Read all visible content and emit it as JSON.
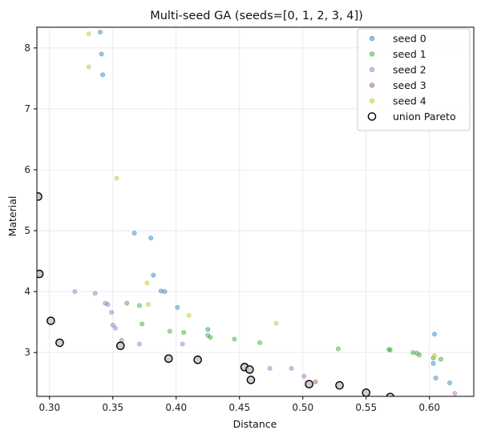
{
  "chart_data": {
    "type": "scatter",
    "title": "Multi-seed GA (seeds=[0, 1, 2, 3, 4])",
    "xlabel": "Distance",
    "ylabel": "Material",
    "xlim": [
      0.29,
      0.635
    ],
    "ylim": [
      2.28,
      8.34
    ],
    "xticks": [
      0.3,
      0.35,
      0.4,
      0.45,
      0.5,
      0.55,
      0.6
    ],
    "xtick_labels": [
      "0.30",
      "0.35",
      "0.40",
      "0.45",
      "0.50",
      "0.55",
      "0.60"
    ],
    "yticks": [
      3,
      4,
      5,
      6,
      7,
      8
    ],
    "ytick_labels": [
      "3",
      "4",
      "5",
      "6",
      "7",
      "8"
    ],
    "grid": true,
    "legend_position": "top-right",
    "series": [
      {
        "name": "seed 0",
        "color": "#1f77b4",
        "points": [
          [
            0.34,
            8.26
          ],
          [
            0.341,
            7.9
          ],
          [
            0.342,
            7.56
          ],
          [
            0.367,
            4.96
          ],
          [
            0.38,
            4.88
          ],
          [
            0.382,
            4.27
          ],
          [
            0.388,
            4.01
          ],
          [
            0.391,
            4.0
          ],
          [
            0.401,
            3.74
          ],
          [
            0.425,
            3.38
          ],
          [
            0.604,
            3.3
          ],
          [
            0.603,
            2.82
          ],
          [
            0.605,
            2.58
          ],
          [
            0.616,
            2.5
          ]
        ]
      },
      {
        "name": "seed 1",
        "color": "#2ca02c",
        "points": [
          [
            0.293,
            4.29
          ],
          [
            0.361,
            3.81
          ],
          [
            0.371,
            3.77
          ],
          [
            0.373,
            3.47
          ],
          [
            0.395,
            3.35
          ],
          [
            0.406,
            3.33
          ],
          [
            0.425,
            3.28
          ],
          [
            0.427,
            3.25
          ],
          [
            0.446,
            3.22
          ],
          [
            0.466,
            3.16
          ],
          [
            0.528,
            3.06
          ],
          [
            0.568,
            3.05
          ],
          [
            0.569,
            3.04
          ],
          [
            0.587,
            3.0
          ],
          [
            0.59,
            2.99
          ],
          [
            0.592,
            2.96
          ],
          [
            0.603,
            2.91
          ],
          [
            0.609,
            2.89
          ]
        ]
      },
      {
        "name": "seed 2",
        "color": "#9467bd",
        "points": [
          [
            0.32,
            4.0
          ],
          [
            0.336,
            3.97
          ],
          [
            0.344,
            3.81
          ],
          [
            0.346,
            3.79
          ],
          [
            0.349,
            3.66
          ],
          [
            0.35,
            3.45
          ],
          [
            0.352,
            3.4
          ],
          [
            0.357,
            3.2
          ],
          [
            0.371,
            3.14
          ],
          [
            0.405,
            3.14
          ],
          [
            0.474,
            2.74
          ],
          [
            0.491,
            2.74
          ],
          [
            0.501,
            2.61
          ],
          [
            0.62,
            2.33
          ]
        ]
      },
      {
        "name": "seed 3",
        "color": "#8c564b",
        "points": [
          [
            0.51,
            2.52
          ]
        ]
      },
      {
        "name": "seed 4",
        "color": "#bcbd22",
        "points": [
          [
            0.331,
            8.23
          ],
          [
            0.331,
            7.69
          ],
          [
            0.353,
            5.86
          ],
          [
            0.377,
            4.14
          ],
          [
            0.378,
            3.79
          ],
          [
            0.41,
            3.61
          ],
          [
            0.479,
            3.48
          ],
          [
            0.604,
            2.95
          ]
        ]
      }
    ],
    "pareto": {
      "name": "union Pareto",
      "points": [
        [
          0.291,
          5.56
        ],
        [
          0.292,
          4.29
        ],
        [
          0.301,
          3.52
        ],
        [
          0.308,
          3.16
        ],
        [
          0.356,
          3.11
        ],
        [
          0.394,
          2.9
        ],
        [
          0.417,
          2.88
        ],
        [
          0.454,
          2.76
        ],
        [
          0.458,
          2.72
        ],
        [
          0.459,
          2.55
        ],
        [
          0.505,
          2.48
        ],
        [
          0.529,
          2.46
        ],
        [
          0.55,
          2.34
        ],
        [
          0.569,
          2.27
        ]
      ]
    }
  }
}
